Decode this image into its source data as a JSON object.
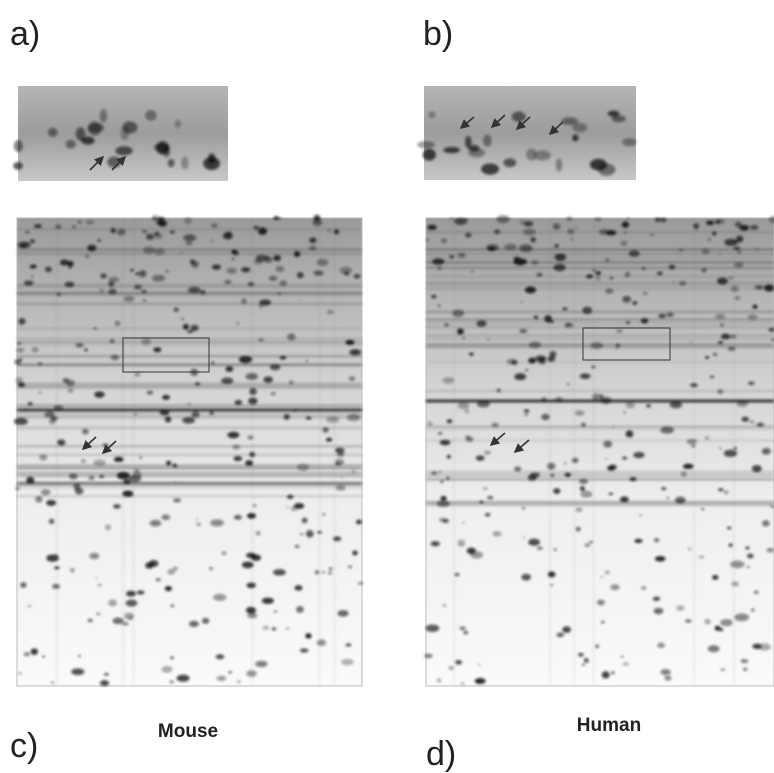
{
  "panels": [
    {
      "label": "a)"
    },
    {
      "label": "b)"
    },
    {
      "label": "c)"
    },
    {
      "label": "d)"
    }
  ],
  "captions": [
    "Mouse",
    "Human"
  ]
}
